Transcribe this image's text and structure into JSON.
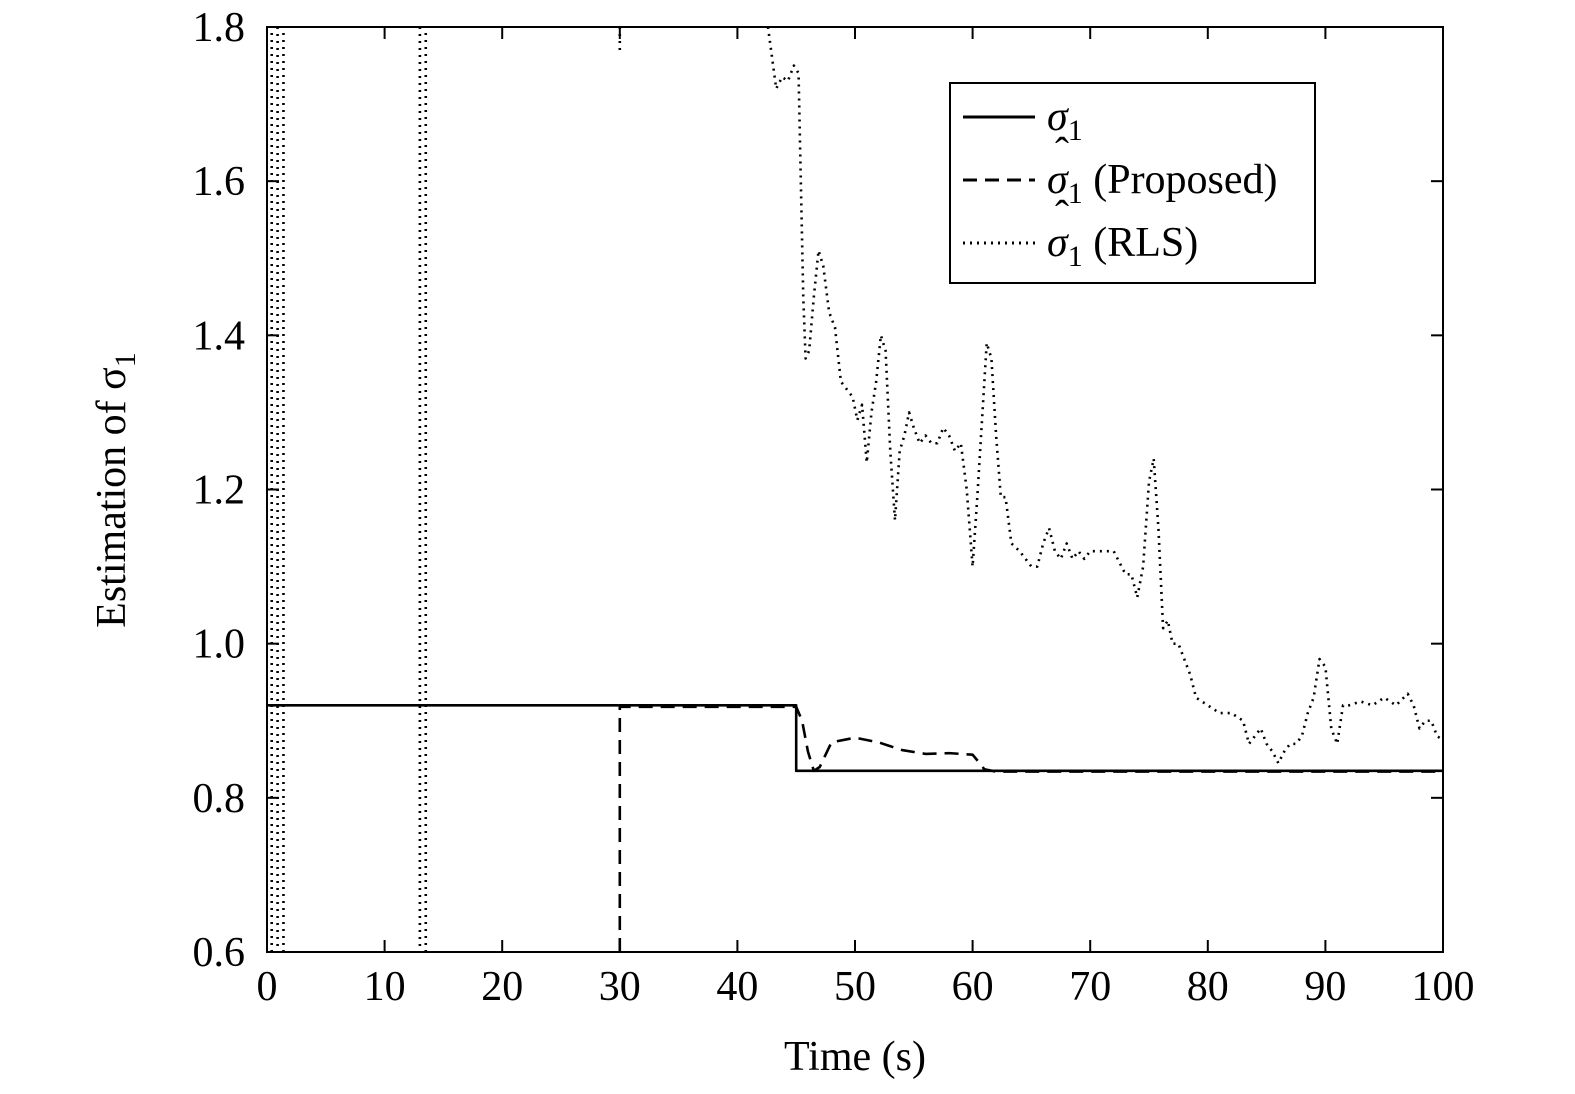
{
  "chart_data": {
    "type": "line",
    "xlabel": "Time (s)",
    "ylabel": "Estimation of σ",
    "ylabel_subscript": "1",
    "xlim": [
      0,
      100
    ],
    "ylim": [
      0.6,
      1.8
    ],
    "xticks": [
      0,
      10,
      20,
      30,
      40,
      50,
      60,
      70,
      80,
      90,
      100
    ],
    "xtick_labels": [
      "0",
      "10",
      "20",
      "30",
      "40",
      "50",
      "60",
      "70",
      "80",
      "90",
      "100"
    ],
    "yticks": [
      0.6,
      0.8,
      1.0,
      1.2,
      1.4,
      1.6,
      1.8
    ],
    "ytick_labels": [
      "0.6",
      "0.8",
      "1.0",
      "1.2",
      "1.4",
      "1.6",
      "1.8"
    ],
    "grid": false,
    "legend_position": "top-right",
    "series": [
      {
        "name": "σ",
        "name_subscript": "1",
        "name_suffix": "",
        "hat": false,
        "style": "solid",
        "color": "#000000",
        "x": [
          0,
          45,
          45,
          100
        ],
        "y": [
          0.92,
          0.92,
          0.835,
          0.835
        ]
      },
      {
        "name": "σ",
        "name_subscript": "1",
        "name_suffix": " (Proposed)",
        "hat": true,
        "style": "dashed",
        "color": "#000000",
        "x": [
          30,
          30,
          45,
          45.5,
          46,
          46.5,
          47,
          48,
          50,
          52,
          54,
          56,
          58,
          60,
          60.6,
          61,
          62,
          65,
          100
        ],
        "y": [
          0.6,
          0.918,
          0.918,
          0.9,
          0.86,
          0.835,
          0.84,
          0.872,
          0.878,
          0.872,
          0.862,
          0.857,
          0.858,
          0.856,
          0.845,
          0.837,
          0.834,
          0.834,
          0.834
        ]
      },
      {
        "name": "σ",
        "name_subscript": "1",
        "name_suffix": " (RLS)",
        "hat": true,
        "style": "dotted",
        "color": "#000000",
        "segments": [
          {
            "x": [
              0.4,
              0.4
            ],
            "y": [
              0.6,
              1.8
            ]
          },
          {
            "x": [
              0.9,
              0.9
            ],
            "y": [
              1.8,
              0.6
            ]
          },
          {
            "x": [
              1.4,
              1.4
            ],
            "y": [
              0.6,
              1.8
            ]
          },
          {
            "x": [
              13.0,
              13.0
            ],
            "y": [
              1.8,
              0.6
            ]
          },
          {
            "x": [
              13.5,
              13.5
            ],
            "y": [
              0.6,
              1.8
            ]
          },
          {
            "x": [
              30.0,
              30.0
            ],
            "y": [
              1.8,
              1.765
            ]
          },
          {
            "x": [
              42.6,
              43.3,
              43.8,
              44.3,
              44.8,
              45.2,
              45.6,
              45.8,
              46.1,
              46.5,
              46.9,
              47.3,
              47.8,
              48.3,
              48.8,
              49.3,
              49.8,
              50.2,
              50.6,
              51.0,
              51.4,
              51.8,
              52.2,
              52.6,
              53.0,
              53.4,
              53.8,
              54.2,
              54.6,
              55.0,
              55.5,
              56.0,
              56.5,
              57.0,
              57.5,
              58.0,
              58.5,
              59.0,
              59.5,
              60.0,
              60.4,
              60.8,
              61.2,
              61.6,
              62.0,
              62.4,
              62.8,
              63.3,
              64.0,
              64.5,
              65.0,
              65.5,
              66.0,
              66.5,
              67.0,
              67.5,
              68.0,
              68.5,
              69.0,
              69.5,
              70.0,
              71.0,
              72.0,
              73.0,
              73.5,
              74.0,
              74.5,
              75.0,
              75.4,
              75.8,
              76.2,
              76.6,
              77.0,
              77.5,
              78.0,
              78.5,
              79.0,
              80.0,
              81.0,
              82.0,
              83.0,
              83.5,
              84.0,
              84.5,
              85.0,
              85.5,
              86.0,
              86.5,
              87.0,
              87.5,
              88.0,
              88.5,
              89.0,
              89.5,
              90.0,
              90.5,
              91.0,
              91.5,
              92.0,
              93.0,
              94.0,
              95.0,
              96.0,
              97.0,
              97.5,
              98.0,
              98.5,
              99.0,
              99.5,
              100.0
            ],
            "y": [
              1.8,
              1.72,
              1.735,
              1.73,
              1.75,
              1.74,
              1.45,
              1.37,
              1.38,
              1.45,
              1.51,
              1.49,
              1.43,
              1.41,
              1.34,
              1.33,
              1.32,
              1.29,
              1.31,
              1.235,
              1.3,
              1.34,
              1.4,
              1.38,
              1.25,
              1.16,
              1.25,
              1.27,
              1.3,
              1.28,
              1.26,
              1.27,
              1.26,
              1.26,
              1.28,
              1.27,
              1.25,
              1.26,
              1.2,
              1.1,
              1.19,
              1.29,
              1.39,
              1.37,
              1.27,
              1.19,
              1.19,
              1.13,
              1.12,
              1.11,
              1.1,
              1.1,
              1.13,
              1.15,
              1.12,
              1.11,
              1.13,
              1.11,
              1.12,
              1.11,
              1.12,
              1.12,
              1.12,
              1.09,
              1.09,
              1.06,
              1.1,
              1.21,
              1.24,
              1.15,
              1.02,
              1.03,
              1.0,
              1.0,
              0.98,
              0.96,
              0.93,
              0.92,
              0.91,
              0.91,
              0.9,
              0.87,
              0.88,
              0.89,
              0.87,
              0.86,
              0.845,
              0.86,
              0.87,
              0.87,
              0.88,
              0.91,
              0.93,
              0.98,
              0.97,
              0.89,
              0.87,
              0.92,
              0.92,
              0.925,
              0.92,
              0.93,
              0.92,
              0.935,
              0.92,
              0.89,
              0.9,
              0.9,
              0.88,
              0.875
            ]
          }
        ]
      }
    ]
  }
}
